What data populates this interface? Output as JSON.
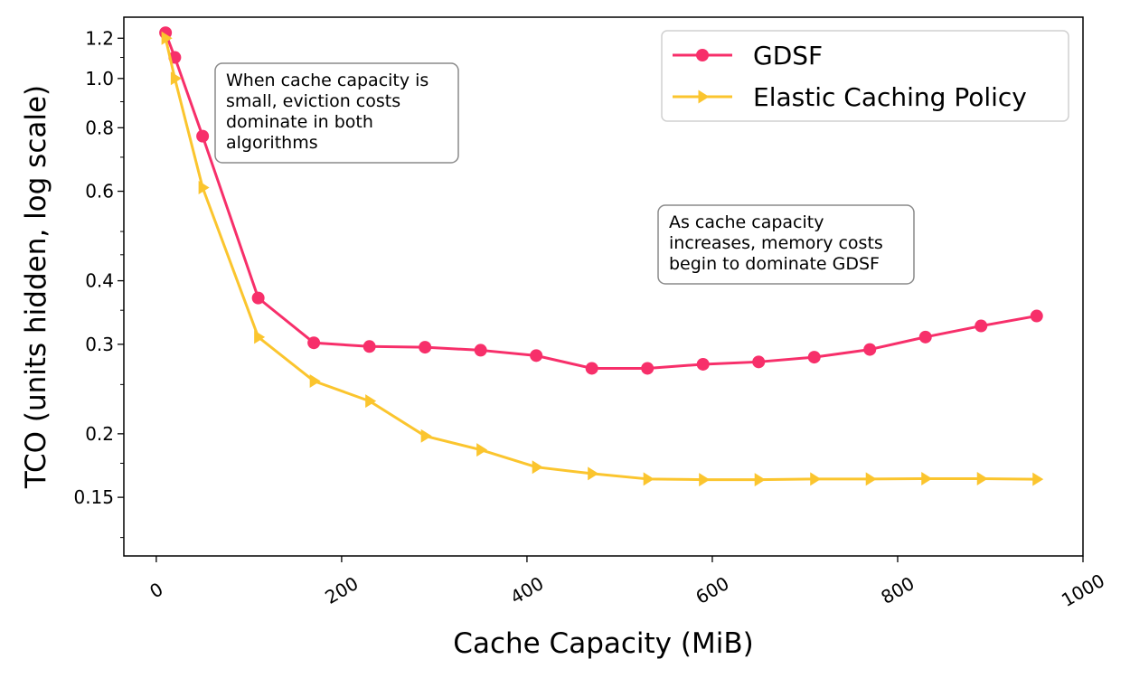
{
  "chart_data": {
    "type": "line",
    "title": "",
    "xlabel": "Cache Capacity (MiB)",
    "ylabel": "TCO (units hidden, log scale)",
    "xlim": [
      -35,
      1000
    ],
    "ylim": [
      0.115,
      1.32
    ],
    "yscale": "log",
    "xticks": [
      0,
      200,
      400,
      600,
      800,
      1000
    ],
    "xtick_labels": [
      "0",
      "200",
      "400",
      "600",
      "800",
      "1000"
    ],
    "yticks": [
      0.15,
      0.2,
      0.3,
      0.4,
      0.6,
      0.8,
      1.0,
      1.2
    ],
    "ytick_labels": [
      "0.15",
      "0.2",
      "0.3",
      "0.4",
      "0.6",
      "0.8",
      "1.0",
      "1.2"
    ],
    "grid": false,
    "legend_position": "top-right",
    "series": [
      {
        "name": "GDSF",
        "color": "#f72f6a",
        "marker": "circle",
        "points": [
          [
            10,
            1.23
          ],
          [
            20,
            1.1
          ],
          [
            50,
            0.77
          ],
          [
            110,
            0.37
          ],
          [
            170,
            0.302
          ],
          [
            230,
            0.297
          ],
          [
            290,
            0.296
          ],
          [
            350,
            0.292
          ],
          [
            410,
            0.285
          ],
          [
            470,
            0.269
          ],
          [
            530,
            0.269
          ],
          [
            590,
            0.274
          ],
          [
            650,
            0.277
          ],
          [
            710,
            0.283
          ],
          [
            770,
            0.293
          ],
          [
            830,
            0.31
          ],
          [
            890,
            0.326
          ],
          [
            950,
            0.341
          ]
        ]
      },
      {
        "name": "Elastic Caching Policy",
        "color": "#fbc52e",
        "marker": "triangle-right",
        "points": [
          [
            10,
            1.2
          ],
          [
            20,
            1.0
          ],
          [
            50,
            0.61
          ],
          [
            110,
            0.31
          ],
          [
            170,
            0.254
          ],
          [
            230,
            0.232
          ],
          [
            290,
            0.198
          ],
          [
            350,
            0.186
          ],
          [
            410,
            0.172
          ],
          [
            470,
            0.167
          ],
          [
            530,
            0.163
          ],
          [
            590,
            0.1625
          ],
          [
            650,
            0.1625
          ],
          [
            710,
            0.163
          ],
          [
            770,
            0.163
          ],
          [
            830,
            0.1632
          ],
          [
            890,
            0.1632
          ],
          [
            950,
            0.1628
          ]
        ]
      }
    ],
    "annotations": [
      {
        "id": "eviction",
        "lines": [
          "When cache capacity is",
          "small, eviction costs",
          "dominate in both",
          "algorithms"
        ]
      },
      {
        "id": "memory",
        "lines": [
          "As cache capacity",
          "increases, memory costs",
          "begin to dominate GDSF"
        ]
      }
    ]
  }
}
